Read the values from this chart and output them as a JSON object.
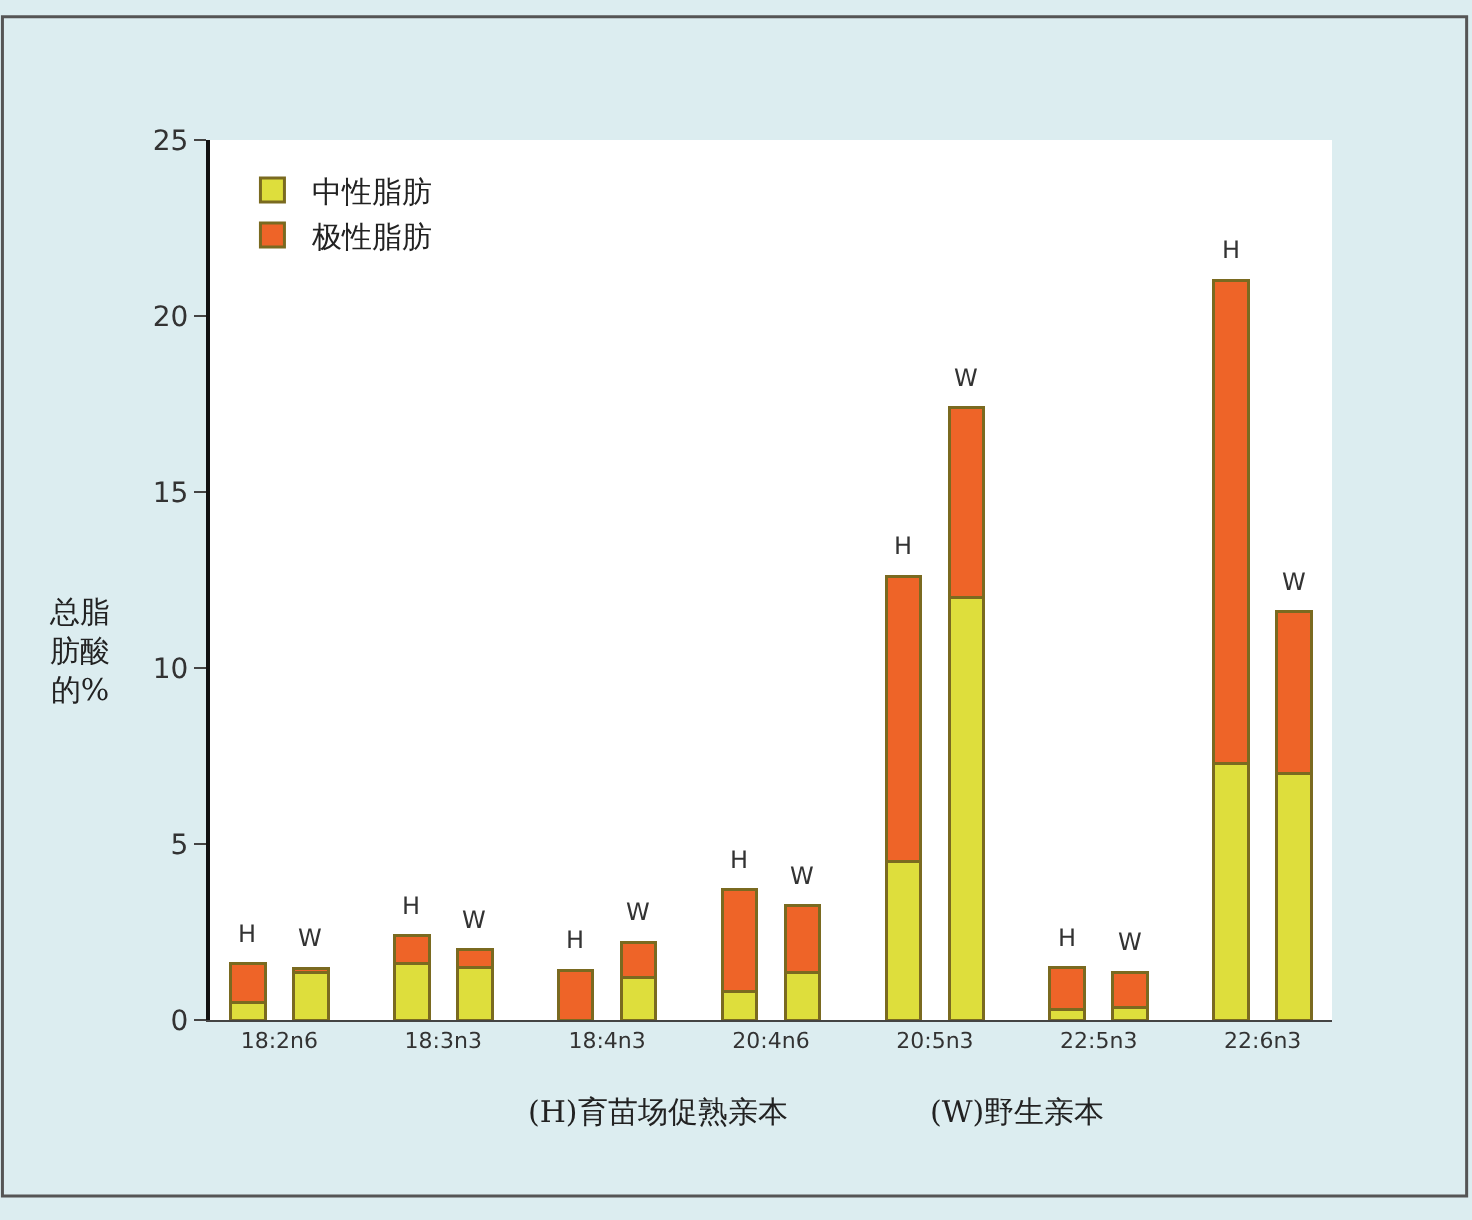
{
  "chart_data": {
    "type": "bar",
    "stacked": true,
    "categories": [
      "H",
      "W",
      "H",
      "W",
      "H",
      "W",
      "H",
      "W",
      "H",
      "W",
      "H",
      "W",
      "H",
      "W"
    ],
    "series": [
      {
        "name": "中性脂肪",
        "color": "#dede3c",
        "values": [
          0.5,
          1.35,
          1.6,
          1.5,
          0,
          1.2,
          0.8,
          1.35,
          4.5,
          12.0,
          0.3,
          0.35,
          7.3,
          7.0
        ]
      },
      {
        "name": "极性脂肪",
        "color": "#ee6428",
        "values": [
          1.1,
          0.1,
          0.8,
          0.5,
          1.4,
          1.0,
          2.9,
          1.9,
          8.1,
          5.4,
          1.2,
          1.0,
          13.7,
          4.6
        ]
      }
    ],
    "ylabel": "总脂肪酸的%",
    "ylim": [
      0,
      25
    ],
    "yticks": [
      0,
      5,
      10,
      15,
      20,
      25
    ],
    "legend": "top left",
    "annotations": [
      "18:2n6",
      "18:3n3",
      "18:4n3",
      "20:4n6",
      "20:5n3",
      "22:5n3",
      "22:6n3",
      "(H)育苗场促熟亲本",
      "(W)野生亲本"
    ]
  }
}
